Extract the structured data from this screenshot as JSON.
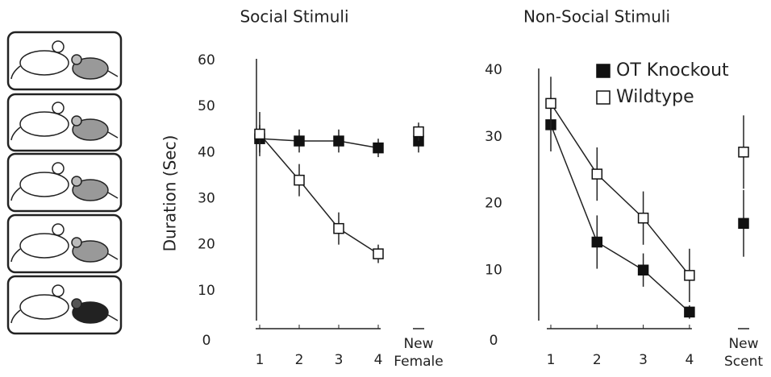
{
  "chart_data": [
    {
      "type": "line",
      "title": "Social Stimuli",
      "ylabel": "Duration (Sec)",
      "categories": [
        "1",
        "2",
        "3",
        "4"
      ],
      "ylim": [
        0,
        60
      ],
      "yticks": [
        0,
        10,
        20,
        30,
        40,
        50,
        60
      ],
      "series": [
        {
          "color": "#111111",
          "values": [
            43,
            42.5,
            42.5,
            41
          ],
          "errors": [
            3,
            2.5,
            2.5,
            2
          ]
        },
        {
          "color": "#ffffff",
          "values": [
            44,
            34,
            23.5,
            18
          ],
          "errors": [
            4.8,
            3.5,
            3.5,
            2
          ]
        }
      ],
      "probe": {
        "label": "New Female",
        "values": [
          42.5,
          44.5
        ],
        "errors": [
          2.5,
          2
        ]
      }
    },
    {
      "type": "line",
      "title": "Non-Social Stimuli",
      "categories": [
        "1",
        "2",
        "3",
        "4"
      ],
      "ylim": [
        0,
        40
      ],
      "yticks": [
        0,
        10,
        20,
        30,
        40
      ],
      "legend": "upper right",
      "series": [
        {
          "name": "OT Knockout",
          "color": "#111111",
          "values": [
            31.8,
            14.2,
            10,
            3.7
          ],
          "errors": [
            4,
            4,
            2.5,
            1
          ]
        },
        {
          "name": "Wildtype",
          "color": "#ffffff",
          "values": [
            35,
            24.4,
            17.8,
            9.2
          ],
          "errors": [
            4,
            4,
            4,
            4
          ]
        }
      ],
      "probe": {
        "label": "New Scent",
        "values": [
          17,
          27.7
        ],
        "errors": [
          5,
          5.5
        ]
      }
    }
  ]
}
